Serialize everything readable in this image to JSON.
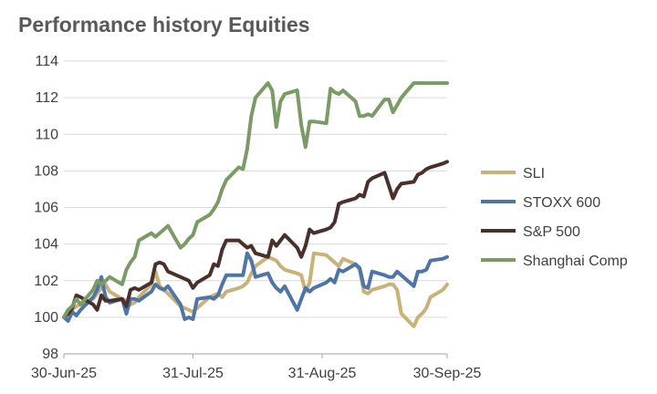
{
  "title": "Performance history Equities",
  "chart_data": {
    "type": "line",
    "title": "Performance history Equities",
    "xlabel": "",
    "ylabel": "",
    "ylim": [
      98,
      114
    ],
    "yticks": [
      98,
      100,
      102,
      104,
      106,
      108,
      110,
      112,
      114
    ],
    "ytick_labels": [
      "98",
      "100",
      "102",
      "104",
      "106",
      "108",
      "110",
      "112",
      "114"
    ],
    "xlim": [
      "2025-06-30",
      "2025-09-30"
    ],
    "xticks": [
      "2025-06-30",
      "2025-07-31",
      "2025-08-31",
      "2025-09-30"
    ],
    "xtick_labels": [
      "30-Jun-25",
      "31-Jul-25",
      "31-Aug-25",
      "30-Sep-25"
    ],
    "grid": "horizontal",
    "legend_position": "right",
    "x": [
      "2025-06-30",
      "2025-07-01",
      "2025-07-02",
      "2025-07-03",
      "2025-07-04",
      "2025-07-07",
      "2025-07-08",
      "2025-07-09",
      "2025-07-10",
      "2025-07-11",
      "2025-07-14",
      "2025-07-15",
      "2025-07-16",
      "2025-07-17",
      "2025-07-18",
      "2025-07-21",
      "2025-07-22",
      "2025-07-23",
      "2025-07-24",
      "2025-07-25",
      "2025-07-28",
      "2025-07-29",
      "2025-07-30",
      "2025-07-31",
      "2025-08-01",
      "2025-08-04",
      "2025-08-05",
      "2025-08-06",
      "2025-08-07",
      "2025-08-08",
      "2025-08-11",
      "2025-08-12",
      "2025-08-13",
      "2025-08-14",
      "2025-08-15",
      "2025-08-18",
      "2025-08-19",
      "2025-08-20",
      "2025-08-21",
      "2025-08-22",
      "2025-08-25",
      "2025-08-26",
      "2025-08-27",
      "2025-08-28",
      "2025-08-29",
      "2025-09-01",
      "2025-09-02",
      "2025-09-03",
      "2025-09-04",
      "2025-09-05",
      "2025-09-08",
      "2025-09-09",
      "2025-09-10",
      "2025-09-11",
      "2025-09-12",
      "2025-09-15",
      "2025-09-16",
      "2025-09-17",
      "2025-09-18",
      "2025-09-19",
      "2025-09-22",
      "2025-09-23",
      "2025-09-24",
      "2025-09-25",
      "2025-09-26",
      "2025-09-29",
      "2025-09-30"
    ],
    "series": [
      {
        "name": "SLI",
        "color": "#C8B27A",
        "values": [
          100.0,
          100.3,
          100.4,
          100.6,
          100.7,
          101.0,
          101.3,
          101.6,
          101.8,
          101.4,
          101.0,
          100.9,
          100.7,
          100.8,
          101.1,
          101.8,
          102.5,
          101.7,
          101.5,
          101.3,
          100.6,
          100.5,
          100.4,
          100.3,
          100.5,
          101.1,
          101.2,
          101.3,
          101.1,
          101.4,
          101.6,
          101.7,
          101.9,
          102.4,
          102.8,
          103.3,
          103.2,
          103.1,
          102.8,
          102.6,
          102.4,
          102.3,
          101.4,
          101.9,
          103.5,
          103.4,
          103.2,
          103.0,
          102.8,
          103.2,
          102.9,
          102.6,
          101.4,
          101.3,
          101.5,
          101.7,
          101.8,
          101.8,
          101.5,
          100.2,
          99.5,
          100.0,
          100.2,
          100.5,
          101.1,
          101.5,
          101.8
        ]
      },
      {
        "name": "STOXX 600",
        "color": "#4F74A6",
        "values": [
          100.0,
          99.8,
          100.3,
          100.1,
          100.4,
          101.1,
          101.5,
          102.2,
          101.1,
          100.8,
          101.0,
          100.2,
          101.0,
          101.0,
          100.9,
          101.4,
          101.8,
          101.6,
          101.5,
          101.7,
          100.7,
          99.9,
          100.0,
          99.9,
          101.0,
          101.1,
          101.0,
          101.2,
          101.8,
          102.3,
          102.3,
          102.3,
          103.5,
          103.1,
          102.2,
          102.4,
          101.9,
          101.6,
          101.4,
          101.7,
          100.4,
          101.0,
          101.6,
          101.4,
          101.6,
          101.9,
          102.1,
          101.9,
          102.6,
          102.5,
          102.9,
          102.7,
          101.7,
          101.6,
          102.5,
          102.3,
          102.2,
          102.2,
          102.5,
          102.3,
          101.7,
          102.5,
          102.5,
          102.6,
          103.1,
          103.2,
          103.3
        ]
      },
      {
        "name": "S&P 500",
        "color": "#4A302B",
        "values": [
          100.0,
          100.2,
          100.5,
          101.2,
          101.1,
          100.7,
          100.4,
          101.2,
          100.9,
          100.9,
          101.0,
          100.6,
          101.5,
          101.6,
          101.5,
          101.9,
          102.9,
          103.0,
          102.9,
          102.5,
          102.2,
          102.1,
          102.0,
          101.6,
          101.9,
          102.3,
          102.9,
          102.8,
          103.7,
          104.2,
          104.2,
          104.0,
          103.8,
          103.9,
          103.5,
          103.3,
          104.2,
          103.9,
          104.2,
          104.5,
          103.8,
          103.3,
          103.9,
          104.8,
          104.6,
          104.8,
          104.9,
          105.2,
          106.2,
          106.3,
          106.5,
          106.7,
          106.6,
          107.4,
          107.6,
          107.9,
          107.2,
          106.5,
          107.0,
          107.3,
          107.4,
          107.8,
          107.9,
          108.1,
          108.2,
          108.4,
          108.5
        ]
      },
      {
        "name": "Shanghai Comp",
        "color": "#7A9A66",
        "values": [
          100.0,
          100.4,
          100.6,
          101.0,
          100.7,
          101.5,
          102.0,
          101.8,
          102.0,
          102.2,
          101.8,
          102.6,
          103.0,
          103.3,
          104.2,
          104.6,
          104.4,
          104.6,
          104.8,
          105.0,
          103.8,
          104.0,
          104.3,
          104.5,
          105.2,
          105.6,
          105.9,
          106.3,
          107.0,
          107.5,
          108.2,
          108.1,
          109.2,
          111.0,
          112.0,
          112.8,
          112.4,
          110.4,
          111.8,
          112.2,
          112.4,
          110.5,
          109.3,
          110.7,
          110.7,
          110.6,
          112.5,
          112.3,
          112.2,
          112.4,
          111.8,
          111.0,
          111.0,
          111.1,
          111.0,
          111.9,
          111.9,
          111.2,
          111.6,
          112.0,
          112.8,
          112.8,
          112.8,
          112.8,
          112.8,
          112.8,
          112.8
        ]
      }
    ]
  }
}
